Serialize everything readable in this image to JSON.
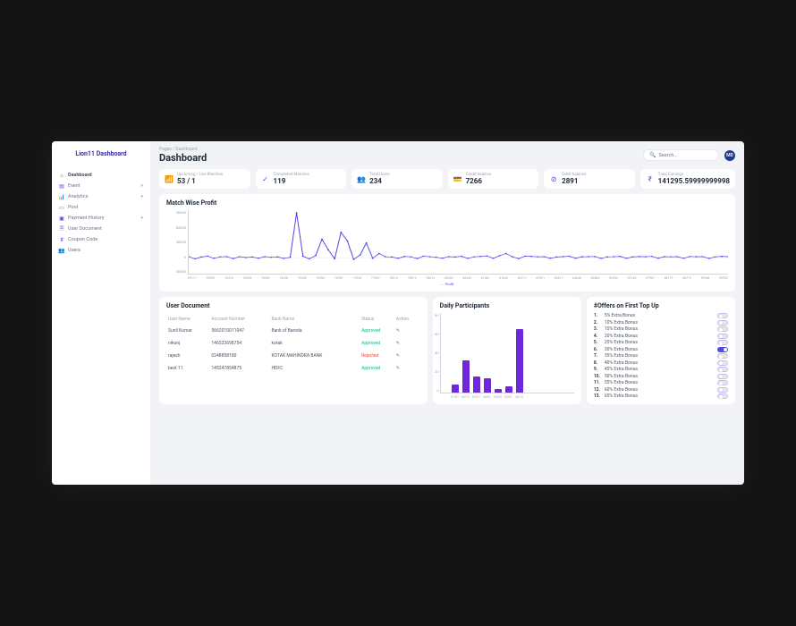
{
  "brand": "Lion11 Dashboard",
  "breadcrumb": "Pages  /  Dashboard",
  "page_title": "Dashboard",
  "search_placeholder": "Search...",
  "avatar_initials": "MD",
  "sidebar": [
    {
      "icon": "⌂",
      "label": "Dashboard",
      "active": true,
      "expandable": false
    },
    {
      "icon": "▤",
      "label": "Event",
      "active": false,
      "expandable": true
    },
    {
      "icon": "📊",
      "label": "Analytics",
      "active": false,
      "expandable": true
    },
    {
      "icon": "▭",
      "label": "Pool",
      "active": false,
      "expandable": false
    },
    {
      "icon": "▣",
      "label": "Payment History",
      "active": false,
      "expandable": true
    },
    {
      "icon": "🗎",
      "label": "User Document",
      "active": false,
      "expandable": false
    },
    {
      "icon": "#",
      "label": "Coupon Code",
      "active": false,
      "expandable": false
    },
    {
      "icon": "👥",
      "label": "Users",
      "active": false,
      "expandable": false
    }
  ],
  "stats": [
    {
      "icon": "📶",
      "label": "Upcoming / Live Matches",
      "value": "53 / 1"
    },
    {
      "icon": "✓",
      "label": "Completed Matches",
      "value": "119"
    },
    {
      "icon": "👥",
      "label": "Total Users",
      "value": "234"
    },
    {
      "icon": "💳",
      "label": "Credit balance",
      "value": "7266"
    },
    {
      "icon": "⊘",
      "label": "Debit balance",
      "value": "2891"
    },
    {
      "icon": "₹",
      "label": "Total Earnings",
      "value": "141295.59999999998"
    }
  ],
  "line_chart": {
    "title": "Match Wise Profit",
    "y_ticks": [
      "90000",
      "60000",
      "30000",
      "0",
      "30000"
    ],
    "y_range": [
      -30000,
      90000
    ],
    "x_ticks": [
      "69111",
      "70259",
      "70418",
      "70456",
      "76089",
      "76338",
      "76355",
      "76983",
      "76987",
      "77548",
      "77887",
      "78012",
      "78014",
      "78015",
      "80352",
      "80353",
      "81581",
      "81645",
      "82712",
      "82961",
      "83617",
      "84648",
      "85684",
      "85930",
      "87140",
      "87967",
      "88119",
      "88772",
      "89568",
      "95932"
    ],
    "legend": "Profit",
    "series_color": "#4f46e5",
    "data": [
      2000,
      -2000,
      1500,
      3000,
      -1000,
      1800,
      2200,
      -1500,
      2000,
      500,
      1500,
      -800,
      2100,
      1000,
      1700,
      -1200,
      900,
      85000,
      3000,
      -2000,
      4000,
      35000,
      15000,
      -2000,
      48000,
      32000,
      -3000,
      5000,
      28000,
      -1000,
      8000,
      2000,
      1500,
      -1000,
      2500,
      1800,
      -1500,
      3000,
      2000,
      1000,
      -800,
      2200,
      1500,
      2800,
      -1200,
      1800,
      2500,
      3500,
      -1000,
      4000,
      8000,
      2000,
      -1500,
      3000,
      2500,
      1800,
      2000,
      -1000,
      1500,
      2200,
      2800,
      -800,
      1900,
      2100,
      2400,
      -1200,
      1800,
      2000,
      2500,
      -1000,
      1700,
      2300,
      1900,
      2600,
      -800,
      2100,
      1800,
      2000,
      -1000,
      2400,
      1900,
      2200,
      -1200,
      1800,
      2500,
      2100
    ]
  },
  "user_doc": {
    "title": "User Document",
    "columns": [
      "User Name",
      "Account Number",
      "Bank Name",
      "Status",
      "Action"
    ],
    "rows": [
      {
        "user": "Sunil Kumar",
        "acct": "5662010011047",
        "bank": "Bank of Baroda",
        "status": "Approved",
        "status_class": "approved"
      },
      {
        "user": "nikunj",
        "acct": "146523698754",
        "bank": "kotak",
        "status": "Approved",
        "status_class": "approved"
      },
      {
        "user": "rajesh",
        "acct": "0248858180",
        "bank": "KOTAK MAHINDRA BANK",
        "status": "Rejected",
        "status_class": "rejected"
      },
      {
        "user": "best 11",
        "acct": "145247854875",
        "bank": "HDFC",
        "status": "Approved",
        "status_class": "approved"
      }
    ]
  },
  "daily": {
    "title": "Daily Participants",
    "y_ticks": [
      "80",
      "60",
      "40",
      "20",
      "0"
    ],
    "y_max": 80,
    "bar_color": "#6d28d9",
    "bars": [
      {
        "label": "31/01",
        "value": 8
      },
      {
        "label": "30/12",
        "value": 32
      },
      {
        "label": "30/01",
        "value": 16
      },
      {
        "label": "28/01",
        "value": 14
      },
      {
        "label": "29/05",
        "value": 4
      },
      {
        "label": "29/01",
        "value": 6
      },
      {
        "label": "28/12",
        "value": 64
      }
    ]
  },
  "offers": {
    "title": "#Offers on First Top Up",
    "items": [
      {
        "n": "1.",
        "label": "5% Extra Bonus",
        "on": false
      },
      {
        "n": "2.",
        "label": "10% Extra Bonus",
        "on": false
      },
      {
        "n": "3.",
        "label": "15% Extra Bonus",
        "on": false
      },
      {
        "n": "4.",
        "label": "20% Extra Bonus",
        "on": false
      },
      {
        "n": "5.",
        "label": "25% Extra Bonus",
        "on": false
      },
      {
        "n": "6.",
        "label": "30% Extra Bonus",
        "on": true
      },
      {
        "n": "7.",
        "label": "35% Extra Bonus",
        "on": false
      },
      {
        "n": "8.",
        "label": "40% Extra Bonus",
        "on": false
      },
      {
        "n": "9.",
        "label": "45% Extra Bonus",
        "on": false
      },
      {
        "n": "10.",
        "label": "50% Extra Bonus",
        "on": false
      },
      {
        "n": "11.",
        "label": "55% Extra Bonus",
        "on": false
      },
      {
        "n": "12.",
        "label": "60% Extra Bonus",
        "on": false
      },
      {
        "n": "13.",
        "label": "65% Extra Bonus",
        "on": false
      }
    ]
  }
}
